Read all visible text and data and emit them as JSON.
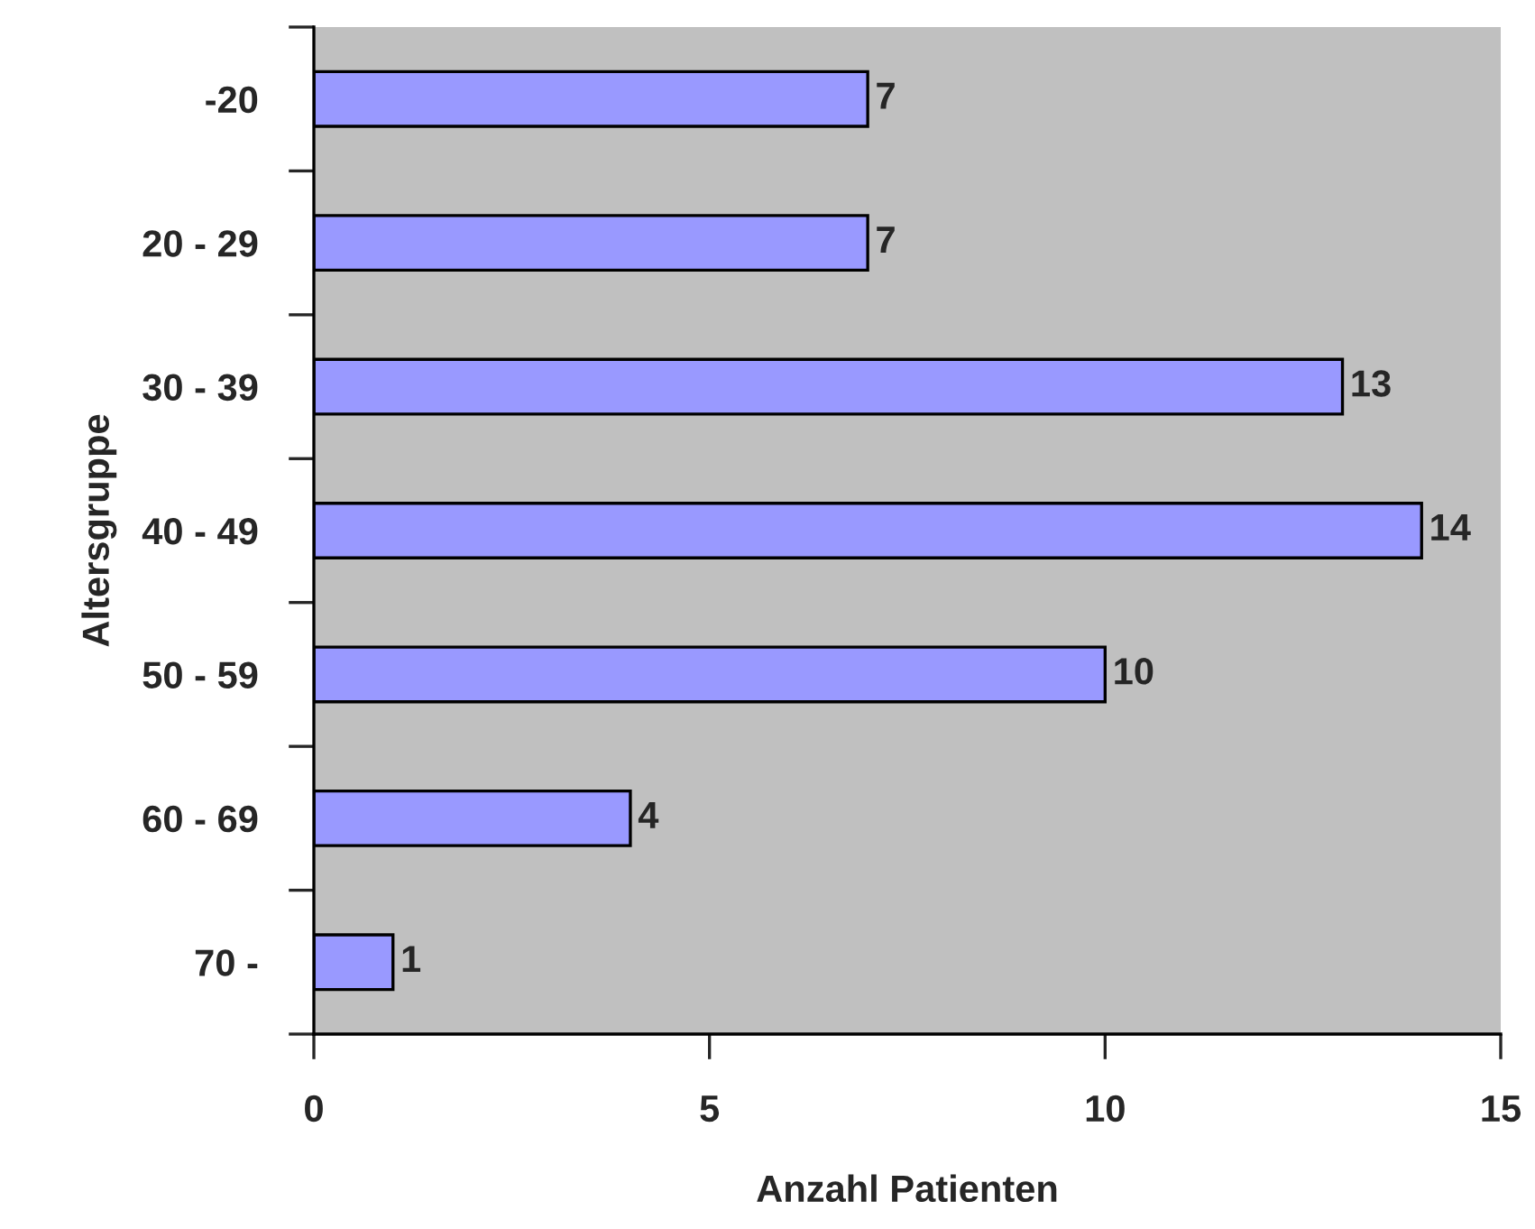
{
  "chart_data": {
    "type": "bar",
    "orientation": "horizontal",
    "xlabel": "Anzahl Patienten",
    "ylabel": "Altersgruppe",
    "categories": [
      "-20",
      "20 - 29",
      "30 - 39",
      "40 - 49",
      "50 - 59",
      "60 - 69",
      "70 -"
    ],
    "values": [
      7,
      7,
      13,
      14,
      10,
      4,
      1
    ],
    "color": "#9999ff",
    "xlim": [
      0,
      15
    ],
    "xticks": [
      0,
      5,
      10,
      15
    ],
    "data_labels": true,
    "grid": false,
    "legend": false
  }
}
